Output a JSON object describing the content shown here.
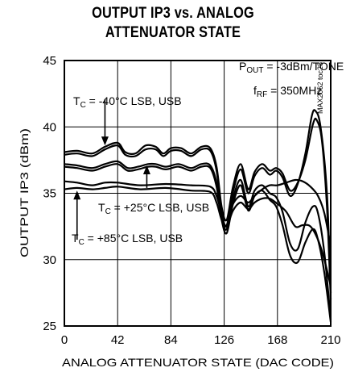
{
  "chart_data": {
    "type": "line",
    "title_line1": "OUTPUT IP3 vs. ANALOG",
    "title_line2": "ATTENUATOR STATE",
    "xlabel": "ANALOG ATTENUATOR STATE (DAC CODE)",
    "ylabel": "OUTPUT IP3 (dBm)",
    "xlim": [
      0,
      210
    ],
    "ylim": [
      25,
      45
    ],
    "xticks": [
      "0",
      "42",
      "84",
      "126",
      "168",
      "210"
    ],
    "yticks": [
      "25",
      "30",
      "35",
      "40",
      "45"
    ],
    "grid": true,
    "doc_code": "MAX2062 toc28",
    "conditions": {
      "pout_main": "P",
      "pout_sub": "OUT",
      "pout_rest": " = -3dBm/TONE",
      "frf_main": "f",
      "frf_sub": "RF",
      "frf_rest": " = 350MHz"
    },
    "annotations": [
      {
        "main": "T",
        "sub": "C",
        "rest": " = -40°C LSB, USB"
      },
      {
        "main": "T",
        "sub": "C",
        "rest": " = +25°C LSB, USB"
      },
      {
        "main": "T",
        "sub": "C",
        "rest": " = +85°C LSB, USB"
      }
    ],
    "series": [
      {
        "label_ref": 0,
        "values": [
          [
            0,
            38.1
          ],
          [
            10,
            38.2
          ],
          [
            22,
            38.0
          ],
          [
            32,
            38.5
          ],
          [
            42,
            38.8
          ],
          [
            48,
            38.1
          ],
          [
            56,
            38.0
          ],
          [
            64,
            38.6
          ],
          [
            72,
            38.5
          ],
          [
            78,
            38.0
          ],
          [
            84,
            38.4
          ],
          [
            92,
            38.4
          ],
          [
            100,
            38.0
          ],
          [
            108,
            38.5
          ],
          [
            115,
            38.4
          ],
          [
            120,
            37.0
          ],
          [
            124,
            34.0
          ],
          [
            128,
            33.0
          ],
          [
            133,
            35.5
          ],
          [
            139,
            37.2
          ],
          [
            145,
            35.3
          ],
          [
            150,
            36.6
          ],
          [
            156,
            37.2
          ],
          [
            162,
            36.7
          ],
          [
            167,
            36.9
          ],
          [
            172,
            36.5
          ],
          [
            178,
            35.2
          ],
          [
            184,
            35.8
          ],
          [
            190,
            37.5
          ],
          [
            196,
            40.2
          ],
          [
            199,
            40.5
          ],
          [
            203,
            39.0
          ],
          [
            207,
            34.0
          ],
          [
            210,
            27.0
          ]
        ]
      },
      {
        "label_ref": 0,
        "values": [
          [
            0,
            37.9
          ],
          [
            10,
            38.0
          ],
          [
            22,
            37.8
          ],
          [
            32,
            38.3
          ],
          [
            42,
            38.6
          ],
          [
            48,
            37.9
          ],
          [
            56,
            37.8
          ],
          [
            64,
            38.3
          ],
          [
            72,
            38.3
          ],
          [
            78,
            37.8
          ],
          [
            84,
            38.2
          ],
          [
            92,
            38.2
          ],
          [
            100,
            37.8
          ],
          [
            108,
            38.3
          ],
          [
            115,
            38.2
          ],
          [
            120,
            36.7
          ],
          [
            124,
            33.6
          ],
          [
            128,
            32.6
          ],
          [
            133,
            35.1
          ],
          [
            139,
            36.8
          ],
          [
            145,
            35.0
          ],
          [
            150,
            36.3
          ],
          [
            156,
            36.9
          ],
          [
            162,
            36.4
          ],
          [
            167,
            36.7
          ],
          [
            172,
            36.2
          ],
          [
            178,
            34.8
          ],
          [
            184,
            35.7
          ],
          [
            190,
            38.0
          ],
          [
            195,
            40.8
          ],
          [
            198,
            41.2
          ],
          [
            202,
            40.0
          ],
          [
            207,
            35.0
          ],
          [
            210,
            27.5
          ]
        ]
      },
      {
        "label_ref": 1,
        "values": [
          [
            0,
            37.2
          ],
          [
            10,
            37.1
          ],
          [
            22,
            36.9
          ],
          [
            32,
            37.2
          ],
          [
            42,
            37.4
          ],
          [
            50,
            36.9
          ],
          [
            58,
            37.0
          ],
          [
            66,
            37.2
          ],
          [
            72,
            37.2
          ],
          [
            80,
            37.0
          ],
          [
            90,
            37.2
          ],
          [
            100,
            36.9
          ],
          [
            108,
            37.2
          ],
          [
            115,
            37.1
          ],
          [
            120,
            35.8
          ],
          [
            124,
            33.2
          ],
          [
            128,
            32.3
          ],
          [
            133,
            34.6
          ],
          [
            139,
            36.0
          ],
          [
            145,
            34.0
          ],
          [
            150,
            35.2
          ],
          [
            156,
            35.6
          ],
          [
            162,
            35.0
          ],
          [
            167,
            34.7
          ],
          [
            172,
            33.6
          ],
          [
            178,
            31.2
          ],
          [
            184,
            30.8
          ],
          [
            190,
            32.8
          ],
          [
            196,
            34.0
          ],
          [
            200,
            33.5
          ],
          [
            205,
            30.5
          ],
          [
            210,
            25.5
          ]
        ]
      },
      {
        "label_ref": 1,
        "values": [
          [
            0,
            37.0
          ],
          [
            10,
            36.9
          ],
          [
            22,
            36.7
          ],
          [
            32,
            37.0
          ],
          [
            42,
            37.2
          ],
          [
            50,
            36.7
          ],
          [
            58,
            36.8
          ],
          [
            66,
            37.0
          ],
          [
            72,
            37.0
          ],
          [
            80,
            36.8
          ],
          [
            90,
            37.0
          ],
          [
            100,
            36.7
          ],
          [
            108,
            37.0
          ],
          [
            115,
            36.9
          ],
          [
            120,
            35.5
          ],
          [
            124,
            33.0
          ],
          [
            128,
            32.0
          ],
          [
            133,
            34.2
          ],
          [
            139,
            35.6
          ],
          [
            145,
            33.7
          ],
          [
            150,
            34.8
          ],
          [
            156,
            35.2
          ],
          [
            162,
            34.5
          ],
          [
            167,
            34.0
          ],
          [
            172,
            32.6
          ],
          [
            178,
            30.3
          ],
          [
            184,
            29.8
          ],
          [
            190,
            31.3
          ],
          [
            196,
            32.3
          ],
          [
            200,
            31.5
          ],
          [
            205,
            29.0
          ],
          [
            210,
            25.3
          ]
        ]
      },
      {
        "label_ref": 2,
        "values": [
          [
            0,
            35.9
          ],
          [
            10,
            35.8
          ],
          [
            22,
            35.6
          ],
          [
            32,
            35.8
          ],
          [
            42,
            35.8
          ],
          [
            60,
            35.6
          ],
          [
            80,
            35.7
          ],
          [
            100,
            35.6
          ],
          [
            115,
            35.5
          ],
          [
            120,
            34.8
          ],
          [
            124,
            33.5
          ],
          [
            128,
            33.0
          ],
          [
            133,
            34.2
          ],
          [
            139,
            34.8
          ],
          [
            145,
            34.3
          ],
          [
            150,
            34.8
          ],
          [
            156,
            35.3
          ],
          [
            162,
            35.6
          ],
          [
            168,
            35.6
          ],
          [
            175,
            35.8
          ],
          [
            182,
            36.0
          ],
          [
            188,
            35.9
          ],
          [
            194,
            35.5
          ],
          [
            200,
            34.8
          ],
          [
            205,
            33.5
          ],
          [
            210,
            31.0
          ]
        ]
      },
      {
        "label_ref": 2,
        "values": [
          [
            0,
            35.3
          ],
          [
            10,
            35.4
          ],
          [
            22,
            35.3
          ],
          [
            32,
            35.4
          ],
          [
            42,
            35.5
          ],
          [
            60,
            35.3
          ],
          [
            80,
            35.4
          ],
          [
            100,
            35.2
          ],
          [
            115,
            35.1
          ],
          [
            120,
            34.3
          ],
          [
            124,
            33.0
          ],
          [
            128,
            32.5
          ],
          [
            133,
            33.7
          ],
          [
            139,
            34.3
          ],
          [
            145,
            33.8
          ],
          [
            150,
            34.3
          ],
          [
            156,
            34.6
          ],
          [
            162,
            34.6
          ],
          [
            168,
            34.2
          ],
          [
            175,
            33.6
          ],
          [
            182,
            32.5
          ],
          [
            188,
            32.6
          ],
          [
            194,
            32.5
          ],
          [
            200,
            31.5
          ],
          [
            205,
            30.0
          ],
          [
            210,
            28.0
          ]
        ]
      }
    ],
    "arrows": [
      {
        "x": 32,
        "y_from": 42.1,
        "y_to": 38.6
      },
      {
        "x": 65,
        "y_from": 35.4,
        "y_to": 37.1
      },
      {
        "x": 10,
        "y_from": 31.5,
        "y_to": 35.2
      }
    ]
  }
}
